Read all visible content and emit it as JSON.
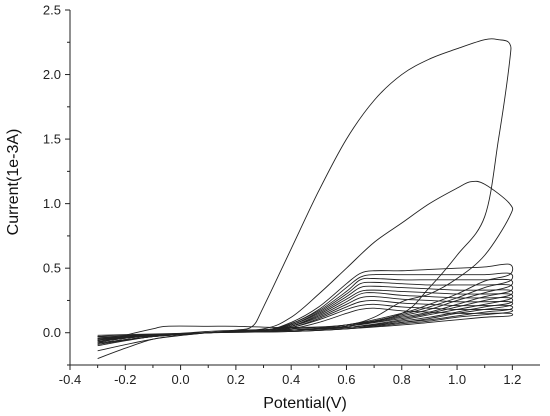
{
  "chart_data": {
    "type": "line",
    "title": "",
    "xlabel": "Potential(V)",
    "ylabel": "Current(1e-3A)",
    "xlim": [
      -0.4,
      1.3
    ],
    "ylim": [
      -0.25,
      2.5
    ],
    "x_ticks": [
      "-0.4",
      "-0.2",
      "0.0",
      "0.2",
      "0.4",
      "0.6",
      "0.8",
      "1.0",
      "1.2"
    ],
    "y_ticks": [
      "0.0",
      "0.5",
      "1.0",
      "1.5",
      "2.0",
      "2.5"
    ],
    "grid": false,
    "legend": "none",
    "line_color": "#222222",
    "series": [
      {
        "values": [
          [
            -0.3,
            -0.2
          ],
          [
            -0.2,
            -0.12
          ],
          [
            -0.1,
            -0.05
          ],
          [
            0.0,
            -0.02
          ],
          [
            0.1,
            0.0
          ],
          [
            0.2,
            0.02
          ],
          [
            0.26,
            0.05
          ],
          [
            0.3,
            0.2
          ],
          [
            0.4,
            0.65
          ],
          [
            0.5,
            1.1
          ],
          [
            0.6,
            1.5
          ],
          [
            0.7,
            1.8
          ],
          [
            0.8,
            2.0
          ],
          [
            0.9,
            2.12
          ],
          [
            1.0,
            2.2
          ],
          [
            1.1,
            2.27
          ],
          [
            1.15,
            2.27
          ],
          [
            1.19,
            2.24
          ],
          [
            1.19,
            2.1
          ],
          [
            1.15,
            1.5
          ],
          [
            1.1,
            0.9
          ],
          [
            1.0,
            0.6
          ],
          [
            0.9,
            0.35
          ],
          [
            0.8,
            0.15
          ],
          [
            0.6,
            0.06
          ],
          [
            0.4,
            0.04
          ],
          [
            0.2,
            0.05
          ],
          [
            0.1,
            0.05
          ],
          [
            -0.05,
            0.05
          ],
          [
            -0.1,
            0.03
          ],
          [
            -0.2,
            -0.02
          ],
          [
            -0.3,
            -0.08
          ]
        ]
      },
      {
        "values": [
          [
            -0.3,
            -0.14
          ],
          [
            -0.1,
            -0.05
          ],
          [
            0.1,
            0.0
          ],
          [
            0.3,
            0.03
          ],
          [
            0.4,
            0.12
          ],
          [
            0.5,
            0.3
          ],
          [
            0.6,
            0.5
          ],
          [
            0.7,
            0.7
          ],
          [
            0.8,
            0.85
          ],
          [
            0.9,
            1.0
          ],
          [
            1.0,
            1.12
          ],
          [
            1.05,
            1.17
          ],
          [
            1.1,
            1.15
          ],
          [
            1.19,
            1.0
          ],
          [
            1.19,
            0.9
          ],
          [
            1.1,
            0.6
          ],
          [
            1.0,
            0.42
          ],
          [
            0.9,
            0.3
          ],
          [
            0.8,
            0.24
          ],
          [
            0.7,
            0.12
          ],
          [
            0.6,
            0.06
          ],
          [
            0.4,
            0.03
          ],
          [
            0.1,
            0.01
          ],
          [
            -0.3,
            -0.06
          ]
        ]
      },
      {
        "values": [
          [
            -0.3,
            -0.1
          ],
          [
            -0.1,
            -0.03
          ],
          [
            0.1,
            0.0
          ],
          [
            0.3,
            0.02
          ],
          [
            0.4,
            0.08
          ],
          [
            0.5,
            0.2
          ],
          [
            0.6,
            0.38
          ],
          [
            0.65,
            0.46
          ],
          [
            0.7,
            0.48
          ],
          [
            0.8,
            0.48
          ],
          [
            0.9,
            0.49
          ],
          [
            1.0,
            0.5
          ],
          [
            1.1,
            0.51
          ],
          [
            1.19,
            0.53
          ],
          [
            1.19,
            0.45
          ],
          [
            1.1,
            0.4
          ],
          [
            1.0,
            0.3
          ],
          [
            0.9,
            0.22
          ],
          [
            0.8,
            0.15
          ],
          [
            0.6,
            0.06
          ],
          [
            0.4,
            0.02
          ],
          [
            0.1,
            0.0
          ],
          [
            -0.3,
            -0.05
          ]
        ]
      },
      {
        "values": [
          [
            -0.3,
            -0.09
          ],
          [
            -0.1,
            -0.03
          ],
          [
            0.1,
            0.0
          ],
          [
            0.3,
            0.02
          ],
          [
            0.4,
            0.07
          ],
          [
            0.5,
            0.18
          ],
          [
            0.6,
            0.35
          ],
          [
            0.65,
            0.43
          ],
          [
            0.7,
            0.45
          ],
          [
            0.8,
            0.45
          ],
          [
            0.9,
            0.45
          ],
          [
            1.0,
            0.45
          ],
          [
            1.1,
            0.45
          ],
          [
            1.19,
            0.46
          ],
          [
            1.19,
            0.4
          ],
          [
            1.1,
            0.35
          ],
          [
            1.0,
            0.27
          ],
          [
            0.9,
            0.2
          ],
          [
            0.8,
            0.14
          ],
          [
            0.6,
            0.05
          ],
          [
            0.4,
            0.02
          ],
          [
            0.1,
            0.0
          ],
          [
            -0.3,
            -0.05
          ]
        ]
      },
      {
        "values": [
          [
            -0.3,
            -0.09
          ],
          [
            -0.1,
            -0.03
          ],
          [
            0.1,
            0.0
          ],
          [
            0.3,
            0.02
          ],
          [
            0.4,
            0.07
          ],
          [
            0.5,
            0.17
          ],
          [
            0.6,
            0.32
          ],
          [
            0.65,
            0.41
          ],
          [
            0.7,
            0.42
          ],
          [
            0.8,
            0.41
          ],
          [
            0.9,
            0.41
          ],
          [
            1.0,
            0.41
          ],
          [
            1.1,
            0.41
          ],
          [
            1.19,
            0.41
          ],
          [
            1.19,
            0.36
          ],
          [
            1.1,
            0.31
          ],
          [
            1.0,
            0.25
          ],
          [
            0.9,
            0.18
          ],
          [
            0.8,
            0.13
          ],
          [
            0.6,
            0.05
          ],
          [
            0.4,
            0.02
          ],
          [
            0.1,
            0.0
          ],
          [
            -0.3,
            -0.05
          ]
        ]
      },
      {
        "values": [
          [
            -0.3,
            -0.08
          ],
          [
            -0.1,
            -0.03
          ],
          [
            0.1,
            0.0
          ],
          [
            0.3,
            0.02
          ],
          [
            0.4,
            0.06
          ],
          [
            0.5,
            0.16
          ],
          [
            0.6,
            0.3
          ],
          [
            0.65,
            0.38
          ],
          [
            0.7,
            0.39
          ],
          [
            0.8,
            0.38
          ],
          [
            0.9,
            0.37
          ],
          [
            1.0,
            0.37
          ],
          [
            1.1,
            0.37
          ],
          [
            1.19,
            0.37
          ],
          [
            1.19,
            0.32
          ],
          [
            1.1,
            0.28
          ],
          [
            1.0,
            0.22
          ],
          [
            0.9,
            0.16
          ],
          [
            0.8,
            0.12
          ],
          [
            0.6,
            0.05
          ],
          [
            0.4,
            0.02
          ],
          [
            0.1,
            0.0
          ],
          [
            -0.3,
            -0.05
          ]
        ]
      },
      {
        "values": [
          [
            -0.3,
            -0.08
          ],
          [
            -0.1,
            -0.03
          ],
          [
            0.1,
            0.0
          ],
          [
            0.3,
            0.02
          ],
          [
            0.4,
            0.06
          ],
          [
            0.5,
            0.15
          ],
          [
            0.6,
            0.28
          ],
          [
            0.65,
            0.35
          ],
          [
            0.7,
            0.36
          ],
          [
            0.8,
            0.35
          ],
          [
            0.9,
            0.34
          ],
          [
            1.0,
            0.33
          ],
          [
            1.1,
            0.33
          ],
          [
            1.19,
            0.33
          ],
          [
            1.19,
            0.29
          ],
          [
            1.1,
            0.25
          ],
          [
            1.0,
            0.2
          ],
          [
            0.9,
            0.15
          ],
          [
            0.8,
            0.11
          ],
          [
            0.6,
            0.05
          ],
          [
            0.4,
            0.02
          ],
          [
            0.1,
            0.0
          ],
          [
            -0.3,
            -0.04
          ]
        ]
      },
      {
        "values": [
          [
            -0.3,
            -0.07
          ],
          [
            -0.1,
            -0.02
          ],
          [
            0.1,
            0.0
          ],
          [
            0.3,
            0.02
          ],
          [
            0.4,
            0.05
          ],
          [
            0.5,
            0.14
          ],
          [
            0.6,
            0.26
          ],
          [
            0.65,
            0.32
          ],
          [
            0.7,
            0.33
          ],
          [
            0.8,
            0.32
          ],
          [
            0.9,
            0.31
          ],
          [
            1.0,
            0.3
          ],
          [
            1.1,
            0.3
          ],
          [
            1.19,
            0.3
          ],
          [
            1.19,
            0.26
          ],
          [
            1.1,
            0.22
          ],
          [
            1.0,
            0.18
          ],
          [
            0.9,
            0.14
          ],
          [
            0.8,
            0.1
          ],
          [
            0.6,
            0.04
          ],
          [
            0.4,
            0.02
          ],
          [
            0.1,
            0.0
          ],
          [
            -0.3,
            -0.04
          ]
        ]
      },
      {
        "values": [
          [
            -0.3,
            -0.07
          ],
          [
            -0.1,
            -0.02
          ],
          [
            0.1,
            0.0
          ],
          [
            0.3,
            0.02
          ],
          [
            0.4,
            0.05
          ],
          [
            0.5,
            0.13
          ],
          [
            0.6,
            0.24
          ],
          [
            0.65,
            0.3
          ],
          [
            0.7,
            0.31
          ],
          [
            0.8,
            0.29
          ],
          [
            0.9,
            0.28
          ],
          [
            1.0,
            0.27
          ],
          [
            1.1,
            0.27
          ],
          [
            1.19,
            0.27
          ],
          [
            1.19,
            0.23
          ],
          [
            1.1,
            0.2
          ],
          [
            1.0,
            0.16
          ],
          [
            0.9,
            0.12
          ],
          [
            0.8,
            0.09
          ],
          [
            0.6,
            0.04
          ],
          [
            0.4,
            0.02
          ],
          [
            0.1,
            0.0
          ],
          [
            -0.3,
            -0.04
          ]
        ]
      },
      {
        "values": [
          [
            -0.3,
            -0.06
          ],
          [
            -0.1,
            -0.02
          ],
          [
            0.1,
            0.0
          ],
          [
            0.3,
            0.02
          ],
          [
            0.4,
            0.05
          ],
          [
            0.5,
            0.12
          ],
          [
            0.6,
            0.22
          ],
          [
            0.65,
            0.27
          ],
          [
            0.7,
            0.28
          ],
          [
            0.8,
            0.26
          ],
          [
            0.9,
            0.25
          ],
          [
            1.0,
            0.24
          ],
          [
            1.1,
            0.24
          ],
          [
            1.19,
            0.24
          ],
          [
            1.19,
            0.21
          ],
          [
            1.1,
            0.18
          ],
          [
            1.0,
            0.15
          ],
          [
            0.9,
            0.11
          ],
          [
            0.8,
            0.08
          ],
          [
            0.6,
            0.04
          ],
          [
            0.4,
            0.02
          ],
          [
            0.1,
            0.0
          ],
          [
            -0.3,
            -0.03
          ]
        ]
      },
      {
        "values": [
          [
            -0.3,
            -0.06
          ],
          [
            -0.1,
            -0.02
          ],
          [
            0.1,
            0.0
          ],
          [
            0.3,
            0.02
          ],
          [
            0.4,
            0.04
          ],
          [
            0.5,
            0.11
          ],
          [
            0.6,
            0.2
          ],
          [
            0.65,
            0.24
          ],
          [
            0.7,
            0.25
          ],
          [
            0.8,
            0.23
          ],
          [
            0.9,
            0.22
          ],
          [
            1.0,
            0.21
          ],
          [
            1.1,
            0.21
          ],
          [
            1.19,
            0.21
          ],
          [
            1.19,
            0.18
          ],
          [
            1.1,
            0.16
          ],
          [
            1.0,
            0.13
          ],
          [
            0.9,
            0.1
          ],
          [
            0.8,
            0.08
          ],
          [
            0.6,
            0.03
          ],
          [
            0.4,
            0.01
          ],
          [
            0.1,
            0.0
          ],
          [
            -0.3,
            -0.03
          ]
        ]
      },
      {
        "values": [
          [
            -0.3,
            -0.05
          ],
          [
            -0.1,
            -0.02
          ],
          [
            0.1,
            0.0
          ],
          [
            0.3,
            0.01
          ],
          [
            0.4,
            0.04
          ],
          [
            0.5,
            0.1
          ],
          [
            0.6,
            0.18
          ],
          [
            0.65,
            0.21
          ],
          [
            0.7,
            0.22
          ],
          [
            0.8,
            0.2
          ],
          [
            0.9,
            0.19
          ],
          [
            1.0,
            0.18
          ],
          [
            1.1,
            0.18
          ],
          [
            1.19,
            0.18
          ],
          [
            1.19,
            0.16
          ],
          [
            1.1,
            0.14
          ],
          [
            1.0,
            0.12
          ],
          [
            0.9,
            0.09
          ],
          [
            0.8,
            0.07
          ],
          [
            0.6,
            0.03
          ],
          [
            0.4,
            0.01
          ],
          [
            0.1,
            0.0
          ],
          [
            -0.3,
            -0.03
          ]
        ]
      },
      {
        "values": [
          [
            -0.3,
            -0.05
          ],
          [
            -0.1,
            -0.02
          ],
          [
            0.1,
            0.0
          ],
          [
            0.3,
            0.01
          ],
          [
            0.4,
            0.03
          ],
          [
            0.5,
            0.08
          ],
          [
            0.6,
            0.15
          ],
          [
            0.65,
            0.18
          ],
          [
            0.7,
            0.19
          ],
          [
            0.8,
            0.17
          ],
          [
            0.9,
            0.16
          ],
          [
            1.0,
            0.15
          ],
          [
            1.1,
            0.15
          ],
          [
            1.19,
            0.15
          ],
          [
            1.19,
            0.13
          ],
          [
            1.1,
            0.12
          ],
          [
            1.0,
            0.1
          ],
          [
            0.9,
            0.08
          ],
          [
            0.8,
            0.06
          ],
          [
            0.6,
            0.03
          ],
          [
            0.4,
            0.01
          ],
          [
            0.1,
            0.0
          ],
          [
            -0.3,
            -0.02
          ]
        ]
      }
    ]
  }
}
